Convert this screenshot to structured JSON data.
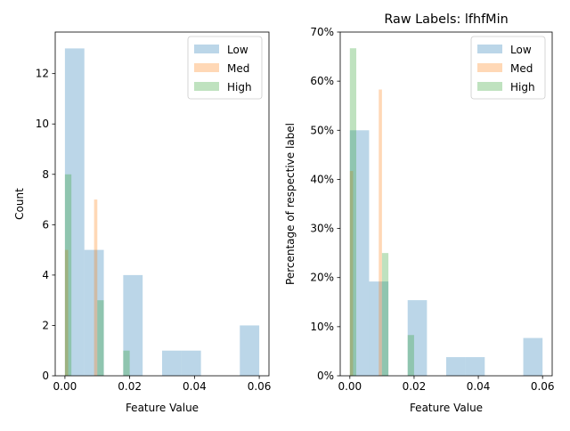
{
  "chart_data": [
    {
      "type": "bar",
      "title": "",
      "xlabel": "Feature Value",
      "ylabel": "Count",
      "xlim": [
        -0.003,
        0.063
      ],
      "ylim": [
        0,
        13.65
      ],
      "xticks": [
        0.0,
        0.02,
        0.04,
        0.06
      ],
      "xtick_labels": [
        "0.00",
        "0.02",
        "0.04",
        "0.06"
      ],
      "yticks": [
        0,
        2,
        4,
        6,
        8,
        10,
        12
      ],
      "ytick_labels": [
        "0",
        "2",
        "4",
        "6",
        "8",
        "10",
        "12"
      ],
      "legend_position": "top-right",
      "series": [
        {
          "name": "Low",
          "color": "#1f77b4",
          "opacity": 0.3,
          "bins": [
            [
              0.0,
              0.006,
              13
            ],
            [
              0.006,
              0.012,
              5
            ],
            [
              0.018,
              0.024,
              4
            ],
            [
              0.03,
              0.036,
              1
            ],
            [
              0.036,
              0.042,
              1
            ],
            [
              0.054,
              0.06,
              2
            ]
          ]
        },
        {
          "name": "Med",
          "color": "#ff7f0e",
          "opacity": 0.3,
          "bins": [
            [
              0.0,
              0.001,
              5
            ],
            [
              0.009,
              0.01,
              7
            ]
          ]
        },
        {
          "name": "High",
          "color": "#2ca02c",
          "opacity": 0.3,
          "bins": [
            [
              0.0,
              0.002,
              8
            ],
            [
              0.01,
              0.012,
              3
            ],
            [
              0.018,
              0.02,
              1
            ]
          ]
        }
      ]
    },
    {
      "type": "bar",
      "title": "Raw Labels: lfhfMin",
      "xlabel": "Feature Value",
      "ylabel": "Percentage of respective label",
      "xlim": [
        -0.003,
        0.063
      ],
      "ylim": [
        0,
        70
      ],
      "xticks": [
        0.0,
        0.02,
        0.04,
        0.06
      ],
      "xtick_labels": [
        "0.00",
        "0.02",
        "0.04",
        "0.06"
      ],
      "yticks": [
        0,
        10,
        20,
        30,
        40,
        50,
        60,
        70
      ],
      "ytick_labels": [
        "0%",
        "10%",
        "20%",
        "30%",
        "40%",
        "50%",
        "60%",
        "70%"
      ],
      "legend_position": "top-right",
      "series": [
        {
          "name": "Low",
          "color": "#1f77b4",
          "opacity": 0.3,
          "bins": [
            [
              0.0,
              0.006,
              50
            ],
            [
              0.006,
              0.012,
              19.2
            ],
            [
              0.018,
              0.024,
              15.4
            ],
            [
              0.03,
              0.036,
              3.8
            ],
            [
              0.036,
              0.042,
              3.8
            ],
            [
              0.054,
              0.06,
              7.7
            ]
          ]
        },
        {
          "name": "Med",
          "color": "#ff7f0e",
          "opacity": 0.3,
          "bins": [
            [
              0.0,
              0.001,
              41.7
            ],
            [
              0.009,
              0.01,
              58.3
            ]
          ]
        },
        {
          "name": "High",
          "color": "#2ca02c",
          "opacity": 0.3,
          "bins": [
            [
              0.0,
              0.002,
              66.7
            ],
            [
              0.01,
              0.012,
              25
            ],
            [
              0.018,
              0.02,
              8.3
            ]
          ]
        }
      ]
    }
  ]
}
